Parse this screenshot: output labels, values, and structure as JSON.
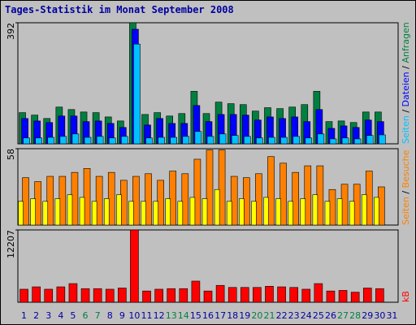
{
  "chart_data": [
    {
      "type": "bar",
      "title": "Tages-Statistik im Monat September 2008",
      "legend_separator": " / ",
      "ylim": [
        0,
        392
      ],
      "yticks": [
        392
      ],
      "series": [
        {
          "name": "Anfragen",
          "color": "#008040",
          "values": [
            101,
            93,
            82,
            119,
            111,
            103,
            101,
            87,
            74,
            392,
            95,
            101,
            90,
            98,
            170,
            98,
            135,
            130,
            127,
            106,
            117,
            114,
            119,
            127,
            170,
            72,
            74,
            69,
            103,
            103,
            0
          ]
        },
        {
          "name": "Dateien",
          "color": "#0000ff",
          "values": [
            82,
            74,
            69,
            90,
            90,
            72,
            74,
            66,
            53,
            371,
            61,
            82,
            66,
            66,
            124,
            72,
            95,
            95,
            93,
            77,
            87,
            82,
            87,
            72,
            111,
            50,
            58,
            53,
            77,
            72,
            0
          ]
        },
        {
          "name": "Seiten",
          "color": "#00c0ff",
          "values": [
            19,
            19,
            21,
            24,
            32,
            21,
            24,
            19,
            24,
            323,
            19,
            21,
            21,
            24,
            40,
            24,
            32,
            27,
            24,
            19,
            21,
            21,
            24,
            19,
            32,
            16,
            19,
            16,
            27,
            29,
            0
          ]
        }
      ]
    },
    {
      "type": "bar",
      "legend_separator": " / ",
      "ylim": [
        0,
        58
      ],
      "yticks": [
        58
      ],
      "series": [
        {
          "name": "Besuche",
          "color": "#ff8000",
          "values": [
            36,
            33,
            37,
            37,
            40,
            43,
            37,
            40,
            34,
            37,
            39,
            34,
            41,
            39,
            50,
            57,
            57,
            37,
            36,
            39,
            52,
            47,
            40,
            45,
            45,
            27,
            31,
            31,
            41,
            29,
            0
          ]
        },
        {
          "name": "Seiten",
          "color": "#ffff00",
          "values": [
            18,
            20,
            18,
            20,
            23,
            21,
            18,
            20,
            23,
            18,
            18,
            18,
            20,
            18,
            21,
            20,
            27,
            18,
            20,
            18,
            21,
            20,
            18,
            20,
            23,
            18,
            20,
            18,
            23,
            21,
            0
          ]
        }
      ]
    },
    {
      "type": "bar",
      "ylim": [
        0,
        12207
      ],
      "yticks": [
        12207
      ],
      "categories": [
        "1",
        "2",
        "3",
        "4",
        "5",
        "6",
        "7",
        "8",
        "9",
        "10",
        "11",
        "12",
        "13",
        "14",
        "15",
        "16",
        "17",
        "18",
        "19",
        "20",
        "21",
        "22",
        "23",
        "24",
        "25",
        "26",
        "27",
        "28",
        "29",
        "30",
        "31"
      ],
      "weekday_color": "#0000a0",
      "weekend_color": "#008040",
      "weekends": [
        "6",
        "7",
        "13",
        "14",
        "20",
        "21",
        "27",
        "28"
      ],
      "series": [
        {
          "name": "kB",
          "color": "#ff0000",
          "values": [
            2200,
            2600,
            2200,
            2600,
            3150,
            2300,
            2300,
            2200,
            2400,
            12207,
            1900,
            2200,
            2300,
            2300,
            3570,
            1900,
            2850,
            2500,
            2500,
            2500,
            2700,
            2600,
            2500,
            2200,
            3150,
            1900,
            2000,
            1700,
            2400,
            2300,
            0
          ]
        }
      ]
    }
  ]
}
